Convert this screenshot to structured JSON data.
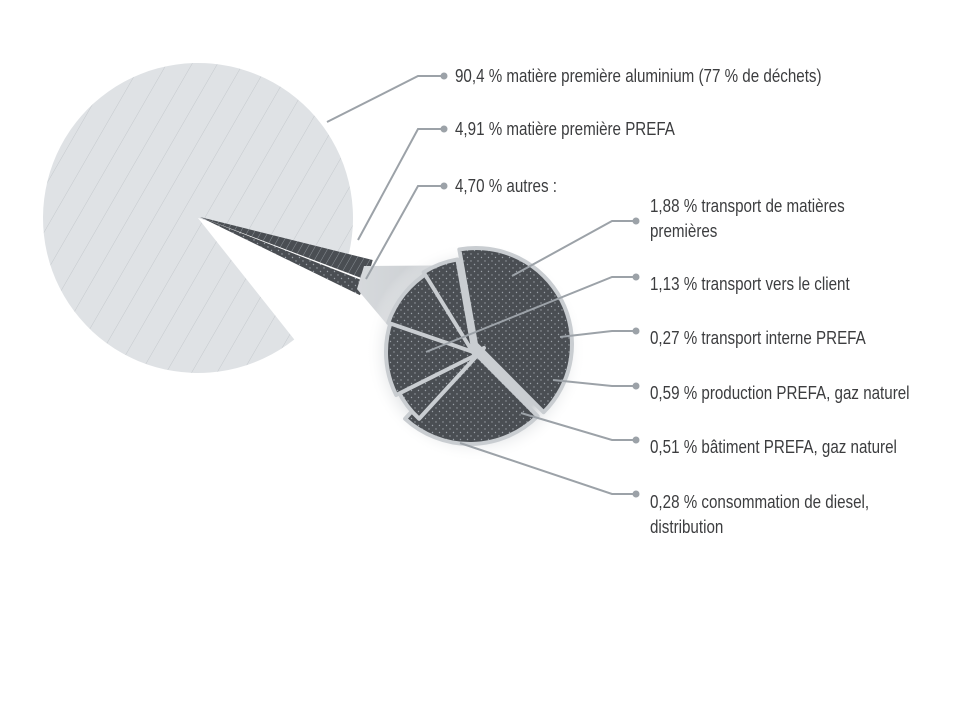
{
  "chart_data": {
    "type": "pie",
    "title": "",
    "main": {
      "slices": [
        {
          "label": "90,4 % matière première aluminium (77 % de déchets)",
          "value": 90.4
        },
        {
          "label": "4,91 % matière première PREFA",
          "value": 4.91
        },
        {
          "label": "4,70 % autres :",
          "value": 4.7
        }
      ]
    },
    "breakdown": {
      "parent": "4,70 % autres :",
      "slices": [
        {
          "label": "1,88 % transport de matières premières",
          "value": 1.88
        },
        {
          "label": "1,13 % transport vers le client",
          "value": 1.13
        },
        {
          "label": "0,27 % transport interne PREFA",
          "value": 0.27
        },
        {
          "label": "0,59 % production PREFA, gaz naturel",
          "value": 0.59
        },
        {
          "label": "0,51 % bâtiment PREFA, gaz naturel",
          "value": 0.51
        },
        {
          "label": "0,28 % consommation de diesel, distribution",
          "value": 0.28
        }
      ]
    },
    "colors": {
      "main_fill": "#dfe2e5",
      "main_hatch": "#c7cbcf",
      "dark_fill": "#4a4e53",
      "leader": "#9ca2a8",
      "text": "#3c3d3f"
    }
  },
  "labels": {
    "l1": "90,4 % matière première aluminium (77 % de déchets)",
    "l2": "4,91 % matière première PREFA",
    "l3": "4,70 % autres :",
    "d1a": "1,88 % transport de matières",
    "d1b": "premières",
    "d2": "1,13 % transport vers le client",
    "d3": "0,27 % transport interne PREFA",
    "d4": "0,59 % production PREFA, gaz naturel",
    "d5": "0,51 % bâtiment PREFA, gaz naturel",
    "d6a": "0,28 % consommation de diesel,",
    "d6b": "distribution"
  }
}
